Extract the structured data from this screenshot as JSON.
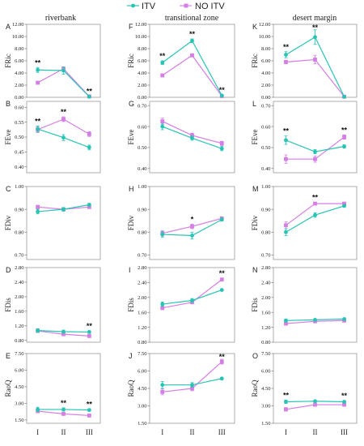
{
  "legend": {
    "itv": "ITV",
    "no_itv": "NO ITV"
  },
  "colors": {
    "itv": "#27c4b3",
    "no_itv": "#d57ee6"
  },
  "columns": [
    "riverbank",
    "transitional zone",
    "desert margin"
  ],
  "chart_data": {
    "type": "line",
    "categories": [
      "I",
      "II",
      "III"
    ],
    "series_names": [
      "ITV",
      "NO ITV"
    ],
    "panels": [
      {
        "id": "A",
        "ylabel": "FRic",
        "yticks": [
          "0.00",
          "2.00",
          "4.00",
          "6.00",
          "8.00",
          "10.00",
          "12.00"
        ],
        "ylim": [
          0,
          12
        ],
        "itv": [
          4.5,
          4.4,
          0.1
        ],
        "itv_err": [
          0.4,
          0.6,
          0.1
        ],
        "no_itv": [
          2.4,
          4.7,
          0.15
        ],
        "no_itv_err": [
          0.2,
          0.3,
          0.05
        ],
        "sig": [
          "**",
          "",
          "**"
        ]
      },
      {
        "id": "B",
        "ylabel": "FEve",
        "yticks": [
          "0.40",
          "0.45",
          "0.50",
          "0.55",
          "0.60"
        ],
        "ylim": [
          0.38,
          0.62
        ],
        "itv": [
          0.527,
          0.498,
          0.465
        ],
        "itv_err": [
          0.01,
          0.01,
          0.008
        ],
        "no_itv": [
          0.525,
          0.56,
          0.51
        ],
        "no_itv_err": [
          0.01,
          0.008,
          0.008
        ],
        "sig": [
          "**",
          "**",
          ""
        ]
      },
      {
        "id": "C",
        "ylabel": "FDiv",
        "yticks": [
          "0.70",
          "0.80",
          "0.90",
          "1.00"
        ],
        "ylim": [
          0.68,
          1.0
        ],
        "itv": [
          0.89,
          0.9,
          0.92
        ],
        "itv_err": [
          0.01,
          0.008,
          0.006
        ],
        "no_itv": [
          0.91,
          0.9,
          0.91
        ],
        "no_itv_err": [
          0.008,
          0.008,
          0.006
        ],
        "sig": [
          "",
          "",
          ""
        ]
      },
      {
        "id": "D",
        "ylabel": "FDis",
        "yticks": [
          "0.80",
          "1.20",
          "1.60",
          "2.00",
          "2.40",
          "2.80"
        ],
        "ylim": [
          0.75,
          2.8
        ],
        "itv": [
          1.07,
          1.04,
          1.03
        ],
        "itv_err": [
          0.05,
          0.04,
          0.03
        ],
        "no_itv": [
          1.06,
          0.97,
          0.92
        ],
        "no_itv_err": [
          0.04,
          0.03,
          0.03
        ],
        "sig": [
          "",
          "",
          "**"
        ]
      },
      {
        "id": "E",
        "ylabel": "RaoQ",
        "yticks": [
          "1.50",
          "3.00",
          "4.50",
          "6.00",
          "7.50"
        ],
        "ylim": [
          1.2,
          7.5
        ],
        "itv": [
          2.45,
          2.45,
          2.4
        ],
        "itv_err": [
          0.2,
          0.15,
          0.1
        ],
        "no_itv": [
          2.3,
          2.05,
          1.9
        ],
        "no_itv_err": [
          0.15,
          0.1,
          0.08
        ],
        "sig": [
          "",
          "**",
          "**"
        ]
      },
      {
        "id": "F",
        "ylabel": "FRic",
        "yticks": [
          "0.00",
          "2.00",
          "4.00",
          "6.00",
          "8.00",
          "10.00",
          "12.00"
        ],
        "ylim": [
          0,
          12
        ],
        "itv": [
          5.7,
          9.3,
          0.3
        ],
        "itv_err": [
          0.3,
          0.3,
          0.1
        ],
        "no_itv": [
          3.6,
          6.9,
          0.2
        ],
        "no_itv_err": [
          0.2,
          0.2,
          0.05
        ],
        "sig": [
          "**",
          "**",
          "**"
        ]
      },
      {
        "id": "G",
        "ylabel": "FEve",
        "yticks": [
          "0.40",
          "0.50",
          "0.60",
          "0.70"
        ],
        "ylim": [
          0.38,
          0.72
        ],
        "itv": [
          0.6,
          0.545,
          0.495
        ],
        "itv_err": [
          0.015,
          0.01,
          0.01
        ],
        "no_itv": [
          0.625,
          0.558,
          0.52
        ],
        "no_itv_err": [
          0.015,
          0.01,
          0.01
        ],
        "sig": [
          "",
          "",
          ""
        ]
      },
      {
        "id": "H",
        "ylabel": "FDiv",
        "yticks": [
          "0.70",
          "0.80",
          "0.90",
          "1.00"
        ],
        "ylim": [
          0.68,
          1.0
        ],
        "itv": [
          0.79,
          0.785,
          0.855
        ],
        "itv_err": [
          0.012,
          0.015,
          0.006
        ],
        "no_itv": [
          0.795,
          0.825,
          0.86
        ],
        "no_itv_err": [
          0.012,
          0.01,
          0.006
        ],
        "sig": [
          "",
          "*",
          ""
        ]
      },
      {
        "id": "I",
        "ylabel": "FDis",
        "yticks": [
          "0.80",
          "1.20",
          "1.60",
          "2.00",
          "2.40",
          "2.80"
        ],
        "ylim": [
          0.8,
          2.8
        ],
        "itv": [
          1.82,
          1.92,
          2.2
        ],
        "itv_err": [
          0.06,
          0.05,
          0.03
        ],
        "no_itv": [
          1.72,
          1.87,
          2.48
        ],
        "no_itv_err": [
          0.05,
          0.04,
          0.04
        ],
        "sig": [
          "",
          "",
          "**"
        ]
      },
      {
        "id": "J",
        "ylabel": "RaoQ",
        "yticks": [
          "1.50",
          "3.00",
          "4.50",
          "6.00",
          "7.50"
        ],
        "ylim": [
          1.5,
          7.5
        ],
        "itv": [
          4.8,
          4.8,
          5.35
        ],
        "itv_err": [
          0.3,
          0.2,
          0.1
        ],
        "no_itv": [
          4.2,
          4.5,
          6.8
        ],
        "no_itv_err": [
          0.25,
          0.2,
          0.2
        ],
        "sig": [
          "",
          "",
          "**"
        ]
      },
      {
        "id": "K",
        "ylabel": "FRic",
        "yticks": [
          "0.00",
          "2.00",
          "4.00",
          "6.00",
          "8.00",
          "10.00",
          "12.00"
        ],
        "ylim": [
          0,
          12
        ],
        "itv": [
          7.0,
          9.9,
          0.1
        ],
        "itv_err": [
          0.5,
          1.2,
          0.05
        ],
        "no_itv": [
          5.8,
          6.2,
          0.1
        ],
        "no_itv_err": [
          0.3,
          0.7,
          0.05
        ],
        "sig": [
          "**",
          "**",
          ""
        ]
      },
      {
        "id": "L",
        "ylabel": "FEve",
        "yticks": [
          "0.40",
          "0.50",
          "0.60",
          "0.70"
        ],
        "ylim": [
          0.38,
          0.72
        ],
        "itv": [
          0.535,
          0.48,
          0.505
        ],
        "itv_err": [
          0.02,
          0.01,
          0.008
        ],
        "no_itv": [
          0.445,
          0.445,
          0.55
        ],
        "no_itv_err": [
          0.02,
          0.015,
          0.01
        ],
        "sig": [
          "**",
          "",
          "**"
        ]
      },
      {
        "id": "M",
        "ylabel": "FDiv",
        "yticks": [
          "0.70",
          "0.80",
          "0.90",
          "1.00"
        ],
        "ylim": [
          0.68,
          1.0
        ],
        "itv": [
          0.8,
          0.875,
          0.915
        ],
        "itv_err": [
          0.015,
          0.01,
          0.005
        ],
        "no_itv": [
          0.83,
          0.925,
          0.925
        ],
        "no_itv_err": [
          0.015,
          0.005,
          0.005
        ],
        "sig": [
          "",
          "**",
          ""
        ]
      },
      {
        "id": "N",
        "ylabel": "FDis",
        "yticks": [
          "0.80",
          "1.20",
          "1.60",
          "2.00",
          "2.40",
          "2.80"
        ],
        "ylim": [
          0.8,
          2.8
        ],
        "itv": [
          1.38,
          1.4,
          1.42
        ],
        "itv_err": [
          0.04,
          0.03,
          0.03
        ],
        "no_itv": [
          1.3,
          1.36,
          1.38
        ],
        "no_itv_err": [
          0.04,
          0.03,
          0.03
        ],
        "sig": [
          "",
          "",
          ""
        ]
      },
      {
        "id": "O",
        "ylabel": "RaoQ",
        "yticks": [
          "1.50",
          "3.00",
          "4.50",
          "6.00",
          "7.50"
        ],
        "ylim": [
          1.5,
          7.5
        ],
        "itv": [
          3.35,
          3.4,
          3.35
        ],
        "itv_err": [
          0.15,
          0.1,
          0.1
        ],
        "no_itv": [
          2.7,
          3.1,
          3.1
        ],
        "no_itv_err": [
          0.15,
          0.1,
          0.1
        ],
        "sig": [
          "**",
          "",
          "**"
        ]
      }
    ]
  }
}
